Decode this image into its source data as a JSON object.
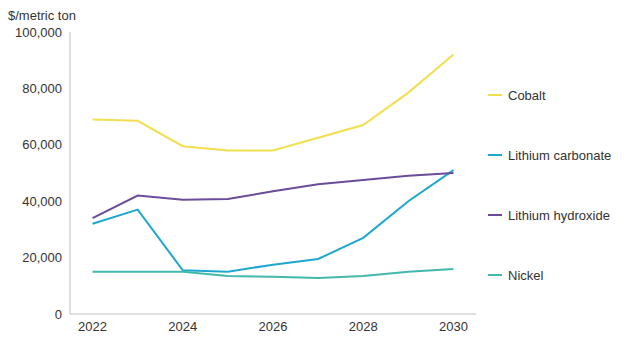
{
  "chart_data": {
    "type": "line",
    "y_label": "$/metric ton",
    "x": [
      2022,
      2023,
      2024,
      2025,
      2026,
      2027,
      2028,
      2029,
      2030
    ],
    "xlim": [
      2021.5,
      2030.5
    ],
    "xticks": [
      2022,
      2024,
      2026,
      2028,
      2030
    ],
    "ylim": [
      0,
      100000
    ],
    "yticks": [
      0,
      {
        "value": 20000,
        "label": "20,000"
      },
      {
        "value": 40000,
        "label": "40,000"
      },
      {
        "value": 60000,
        "label": "60,000"
      },
      {
        "value": 80000,
        "label": "80,000"
      },
      {
        "value": 100000,
        "label": "100,000"
      }
    ],
    "grid": false,
    "legend": "right",
    "series": [
      {
        "name": "Lithium carbonate",
        "color": "#1ea7d1",
        "values": [
          32000,
          37000,
          15500,
          15000,
          17500,
          19500,
          27000,
          40000,
          51000
        ]
      },
      {
        "name": "Lithium hydroxide",
        "color": "#6b4c9a",
        "values": [
          34000,
          42000,
          40500,
          40800,
          43500,
          46000,
          47500,
          49000,
          50000
        ]
      },
      {
        "name": "Nickel",
        "color": "#43b8ad",
        "values": [
          15000,
          15000,
          15000,
          13500,
          13200,
          12800,
          13500,
          15000,
          16000
        ]
      },
      {
        "name": "Cobalt",
        "color": "#f2df4f",
        "values": [
          69000,
          68500,
          59500,
          58000,
          58000,
          62500,
          67000,
          78500,
          92000
        ]
      }
    ]
  }
}
